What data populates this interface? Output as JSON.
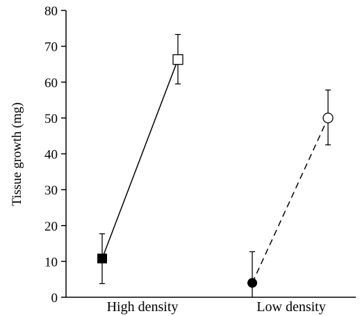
{
  "chart_data": {
    "type": "scatter",
    "ylabel": "Tissue growth (mg)",
    "xlabel": "",
    "ylim": [
      0,
      80
    ],
    "y_ticks": [
      0,
      10,
      20,
      30,
      40,
      50,
      60,
      70,
      80
    ],
    "y_tick_labels": [
      "0",
      "10",
      "20",
      "30",
      "40",
      "50",
      "60",
      "70",
      "80"
    ],
    "categories": [
      "High density",
      "Low density"
    ],
    "grid": false,
    "series": [
      {
        "group": "High density",
        "line_style": "solid",
        "points": [
          {
            "position": "left",
            "marker": "filled-square",
            "y": 10.8,
            "err_low": 3.8,
            "err_high": 17.7
          },
          {
            "position": "right",
            "marker": "open-square",
            "y": 66.3,
            "err_low": 59.5,
            "err_high": 73.3
          }
        ]
      },
      {
        "group": "Low density",
        "line_style": "dashed",
        "points": [
          {
            "position": "left",
            "marker": "filled-circle",
            "y": 4.0,
            "err_low": 0,
            "err_high": 12.7
          },
          {
            "position": "right",
            "marker": "open-circle",
            "y": 50.0,
            "err_low": 42.5,
            "err_high": 57.8
          }
        ]
      }
    ]
  }
}
